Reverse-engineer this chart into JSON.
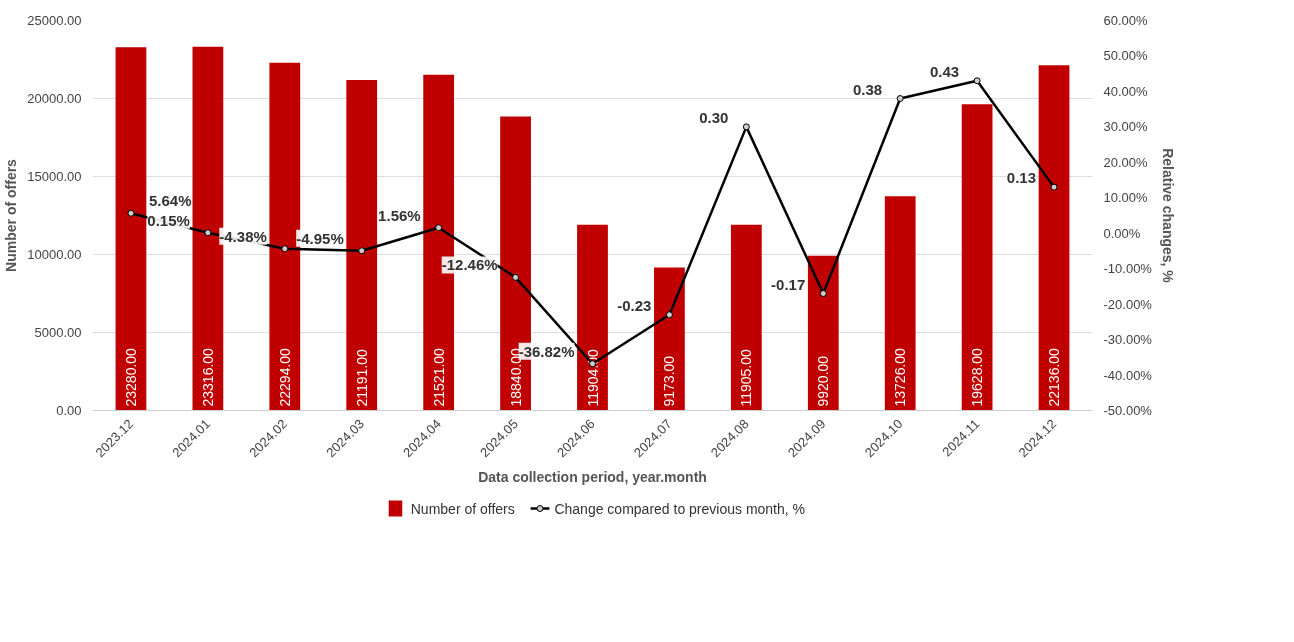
{
  "chart_data": {
    "type": "bar",
    "categories": [
      "2023.12",
      "2024.01",
      "2024.02",
      "2024.03",
      "2024.04",
      "2024.05",
      "2024.06",
      "2024.07",
      "2024.08",
      "2024.09",
      "2024.10",
      "2024.11",
      "2024.12"
    ],
    "xlabel": "Data collection period, year.month",
    "ylabel": "Number of offers",
    "y2label": "Relative changes, %",
    "ylim": [
      0,
      25000
    ],
    "yticks": [
      {
        "value": 0,
        "label": "0.00"
      },
      {
        "value": 5000,
        "label": "5000.00"
      },
      {
        "value": 10000,
        "label": "10000.00"
      },
      {
        "value": 15000,
        "label": "15000.00"
      },
      {
        "value": 20000,
        "label": "20000.00"
      },
      {
        "value": 25000,
        "label": "25000.00"
      }
    ],
    "y2lim": [
      -0.5,
      0.6
    ],
    "y2ticks": [
      {
        "value": -0.5,
        "label": "-50.00%"
      },
      {
        "value": -0.4,
        "label": "-40.00%"
      },
      {
        "value": -0.3,
        "label": "-30.00%"
      },
      {
        "value": -0.2,
        "label": "-20.00%"
      },
      {
        "value": -0.1,
        "label": "-10.00%"
      },
      {
        "value": 0,
        "label": "0.00%"
      },
      {
        "value": 0.1,
        "label": "10.00%"
      },
      {
        "value": 0.2,
        "label": "20.00%"
      },
      {
        "value": 0.3,
        "label": "30.00%"
      },
      {
        "value": 0.4,
        "label": "40.00%"
      },
      {
        "value": 0.5,
        "label": "50.00%"
      },
      {
        "value": 0.6,
        "label": "60.00%"
      }
    ],
    "grid": "y",
    "legend": "bottom",
    "series": [
      {
        "name": "Number of offers",
        "color": "#c00000",
        "values": [
          23280,
          23316,
          22294,
          21191,
          21521,
          18840,
          11904,
          9173,
          11905,
          9920,
          13726,
          19628,
          22136
        ],
        "value_labels": [
          "23280.00",
          "23316.00",
          "22294.00",
          "21191.00",
          "21521.00",
          "18840.00",
          "11904.00",
          "9173.00",
          "11905.00",
          "9920.00",
          "13726.00",
          "19628.00",
          "22136.00"
        ]
      },
      {
        "name": "Change compared to previous month, %",
        "type": "line",
        "axis": "y2",
        "color": "#000000",
        "marker": "circle",
        "values": [
          0.0564,
          0.0015,
          -0.0438,
          -0.0495,
          0.0156,
          -0.1246,
          -0.3682,
          -0.23,
          0.3,
          -0.17,
          0.38,
          0.43,
          0.13
        ],
        "value_labels": [
          "5.64%",
          "0.15%",
          "-4.38%",
          "-4.95%",
          "1.56%",
          "-12.46%",
          "-36.82%",
          "-0.23",
          "0.30",
          "-0.17",
          "0.38",
          "0.43",
          "0.13"
        ]
      }
    ]
  }
}
